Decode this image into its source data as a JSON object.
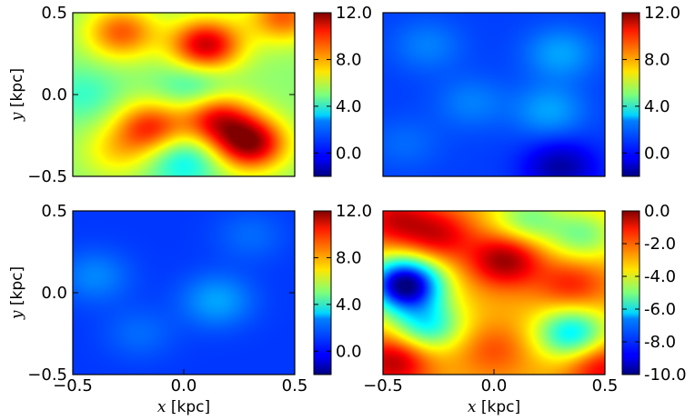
{
  "chart_data": [
    {
      "type": "heatmap",
      "panel": "top-left",
      "title": "",
      "xlabel": "",
      "ylabel_var": "y",
      "ylabel_unit": " [kpc]",
      "xlim": [
        -0.5,
        0.5
      ],
      "ylim": [
        -0.5,
        0.5
      ],
      "x_ticks": [],
      "y_ticks": [
        "0.5",
        "0.0",
        "−0.5"
      ],
      "colorbar": {
        "range": [
          -2,
          12
        ],
        "ticks": [
          "12.0",
          "8.0",
          "4.0",
          "0.0"
        ]
      },
      "base_value": 5.2,
      "features": [
        {
          "x": -0.28,
          "y": 0.38,
          "value": 9.0
        },
        {
          "x": 0.1,
          "y": 0.3,
          "value": 11.0
        },
        {
          "x": 0.45,
          "y": 0.48,
          "value": 9.0
        },
        {
          "x": -0.15,
          "y": -0.2,
          "value": 9.5
        },
        {
          "x": 0.3,
          "y": -0.3,
          "value": 11.5
        },
        {
          "x": 0.15,
          "y": -0.15,
          "value": 10.0
        },
        {
          "x": -0.3,
          "y": -0.35,
          "value": 7.0
        },
        {
          "x": 0.05,
          "y": 0.05,
          "value": 3.5
        },
        {
          "x": -0.45,
          "y": 0.0,
          "value": 4.0
        },
        {
          "x": 0.0,
          "y": -0.4,
          "value": 3.0
        }
      ]
    },
    {
      "type": "heatmap",
      "panel": "top-right",
      "title": "",
      "xlabel": "",
      "ylabel_var": "",
      "ylabel_unit": "",
      "xlim": [
        -0.5,
        0.5
      ],
      "ylim": [
        -0.5,
        0.5
      ],
      "x_ticks": [],
      "y_ticks": [],
      "colorbar": {
        "range": [
          -2,
          12
        ],
        "ticks": [
          "12.0",
          "8.0",
          "4.0",
          "0.0"
        ]
      },
      "base_value": 0.6,
      "features": [
        {
          "x": -0.3,
          "y": 0.3,
          "value": 1.5
        },
        {
          "x": 0.3,
          "y": 0.25,
          "value": 2.0
        },
        {
          "x": -0.1,
          "y": -0.05,
          "value": 1.5
        },
        {
          "x": 0.25,
          "y": -0.1,
          "value": 2.0
        },
        {
          "x": -0.4,
          "y": -0.3,
          "value": 1.2
        },
        {
          "x": 0.3,
          "y": -0.45,
          "value": -1.5
        }
      ]
    },
    {
      "type": "heatmap",
      "panel": "bottom-left",
      "title": "",
      "xlabel_var": "x",
      "xlabel_unit": " [kpc]",
      "ylabel_var": "y",
      "ylabel_unit": " [kpc]",
      "xlim": [
        -0.5,
        0.5
      ],
      "ylim": [
        -0.5,
        0.5
      ],
      "x_ticks": [
        "−0.5",
        "0.0",
        "0.5"
      ],
      "y_ticks": [
        "0.5",
        "0.0",
        "−0.5"
      ],
      "colorbar": {
        "range": [
          -2,
          12
        ],
        "ticks": [
          "12.0",
          "8.0",
          "4.0",
          "0.0"
        ]
      },
      "base_value": 0.5,
      "features": [
        {
          "x": -0.4,
          "y": 0.1,
          "value": 1.6
        },
        {
          "x": 0.15,
          "y": -0.05,
          "value": 2.0
        },
        {
          "x": -0.2,
          "y": -0.25,
          "value": 1.2
        },
        {
          "x": 0.3,
          "y": 0.35,
          "value": 1.2
        }
      ]
    },
    {
      "type": "heatmap",
      "panel": "bottom-right",
      "title": "",
      "xlabel_var": "x",
      "xlabel_unit": " [kpc]",
      "ylabel_var": "",
      "ylabel_unit": "",
      "xlim": [
        -0.5,
        0.5
      ],
      "ylim": [
        -0.5,
        0.5
      ],
      "x_ticks": [
        "−0.5",
        "0.0",
        "0.5"
      ],
      "y_ticks": [],
      "colorbar": {
        "range": [
          -10,
          0
        ],
        "ticks": [
          "0.0",
          "-2.0",
          "-4.0",
          "-6.0",
          "-8.0",
          "-10.0"
        ]
      },
      "base_value": -3.0,
      "features": [
        {
          "x": 0.05,
          "y": 0.2,
          "value": -0.2
        },
        {
          "x": -0.25,
          "y": 0.35,
          "value": -1.0
        },
        {
          "x": -0.45,
          "y": 0.45,
          "value": -1.0
        },
        {
          "x": 0.35,
          "y": 0.05,
          "value": -1.5
        },
        {
          "x": -0.4,
          "y": 0.05,
          "value": -10.0
        },
        {
          "x": -0.3,
          "y": -0.2,
          "value": -6.0
        },
        {
          "x": -0.45,
          "y": -0.42,
          "value": -0.5
        },
        {
          "x": 0.0,
          "y": -0.35,
          "value": -2.0
        },
        {
          "x": 0.15,
          "y": -0.3,
          "value": -3.0
        },
        {
          "x": 0.35,
          "y": -0.25,
          "value": -6.5
        },
        {
          "x": 0.4,
          "y": 0.35,
          "value": -5.0
        },
        {
          "x": 0.48,
          "y": -0.45,
          "value": -1.0
        },
        {
          "x": 0.15,
          "y": 0.45,
          "value": -5.0
        }
      ]
    }
  ]
}
